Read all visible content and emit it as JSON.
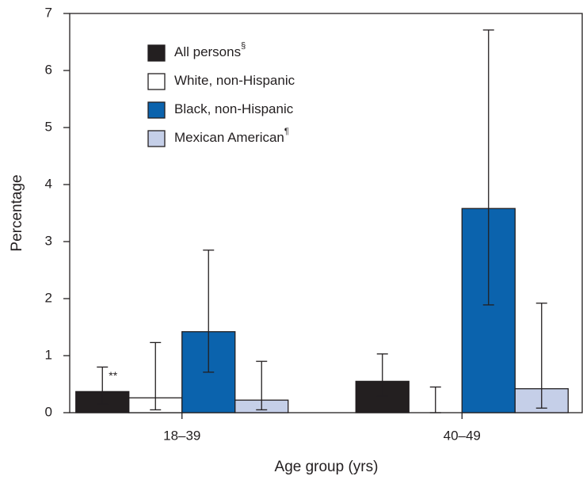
{
  "chart_data": {
    "type": "bar",
    "x_label": "Age group (yrs)",
    "y_label": "Percentage",
    "categories": [
      "18–39",
      "40–49"
    ],
    "ylim": [
      0,
      7
    ],
    "yticks": [
      0,
      1,
      2,
      3,
      4,
      5,
      6,
      7
    ],
    "series": [
      {
        "name": "All persons",
        "footnote": "§",
        "color": "#231f20",
        "values": [
          0.37,
          0.55
        ],
        "ci_low": [
          0.15,
          0.29
        ],
        "ci_high": [
          0.8,
          1.03
        ]
      },
      {
        "name": "White, non-Hispanic",
        "color": "#ffffff",
        "values": [
          0.26,
          0
        ],
        "ci_low": [
          0.05,
          0
        ],
        "ci_high": [
          1.23,
          0.45
        ]
      },
      {
        "name": "Black, non-Hispanic",
        "color": "#0b63ad",
        "values": [
          1.42,
          3.58
        ],
        "ci_low": [
          0.71,
          1.89
        ],
        "ci_high": [
          2.85,
          6.71
        ]
      },
      {
        "name": "Mexican American",
        "footnote": "¶",
        "color": "#c5cfe8",
        "values": [
          0.22,
          0.42
        ],
        "ci_low": [
          0.05,
          0.08
        ],
        "ci_high": [
          0.9,
          1.92
        ]
      }
    ],
    "annotations": [
      {
        "text": "**",
        "series": 0,
        "category": 0
      }
    ]
  }
}
